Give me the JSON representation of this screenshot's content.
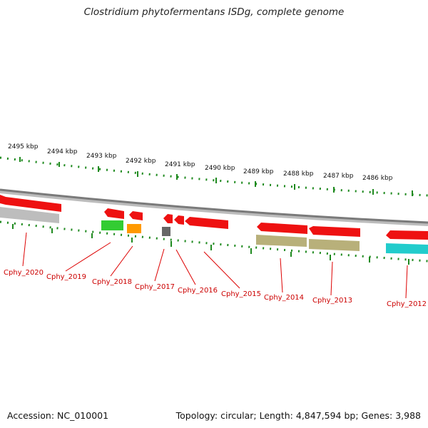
{
  "title": "Clostridium phytofermentans ISDg, complete genome",
  "footer": {
    "accession": "Accession: NC_010001",
    "summary": "Topology: circular; Length: 4,847,594 bp; Genes: 3,988"
  },
  "colors": {
    "backbone": "#8a8a8a",
    "tick": "#1f8a1f",
    "forward_gene": "#ee1111",
    "gene_label": "#cc0000",
    "leader_line": "#dd0000",
    "scale_text": "#111111"
  },
  "scale_labels": [
    "2495 kbp",
    "2494 kbp",
    "2493 kbp",
    "2492 kbp",
    "2491 kbp",
    "2490 kbp",
    "2489 kbp",
    "2488 kbp",
    "2487 kbp",
    "2486 kbp"
  ],
  "gene_labels": [
    "Cphy_2020",
    "Cphy_2019",
    "Cphy_2018",
    "Cphy_2017",
    "Cphy_2016",
    "Cphy_2015",
    "Cphy_2014",
    "Cphy_2013",
    "Cphy_2012"
  ],
  "cog_feature_colors": [
    "#bdbdbd",
    "#33cc33",
    "#ff9900",
    "#666666",
    "#b8b07a",
    "#b8b07a",
    "#22cccc"
  ]
}
